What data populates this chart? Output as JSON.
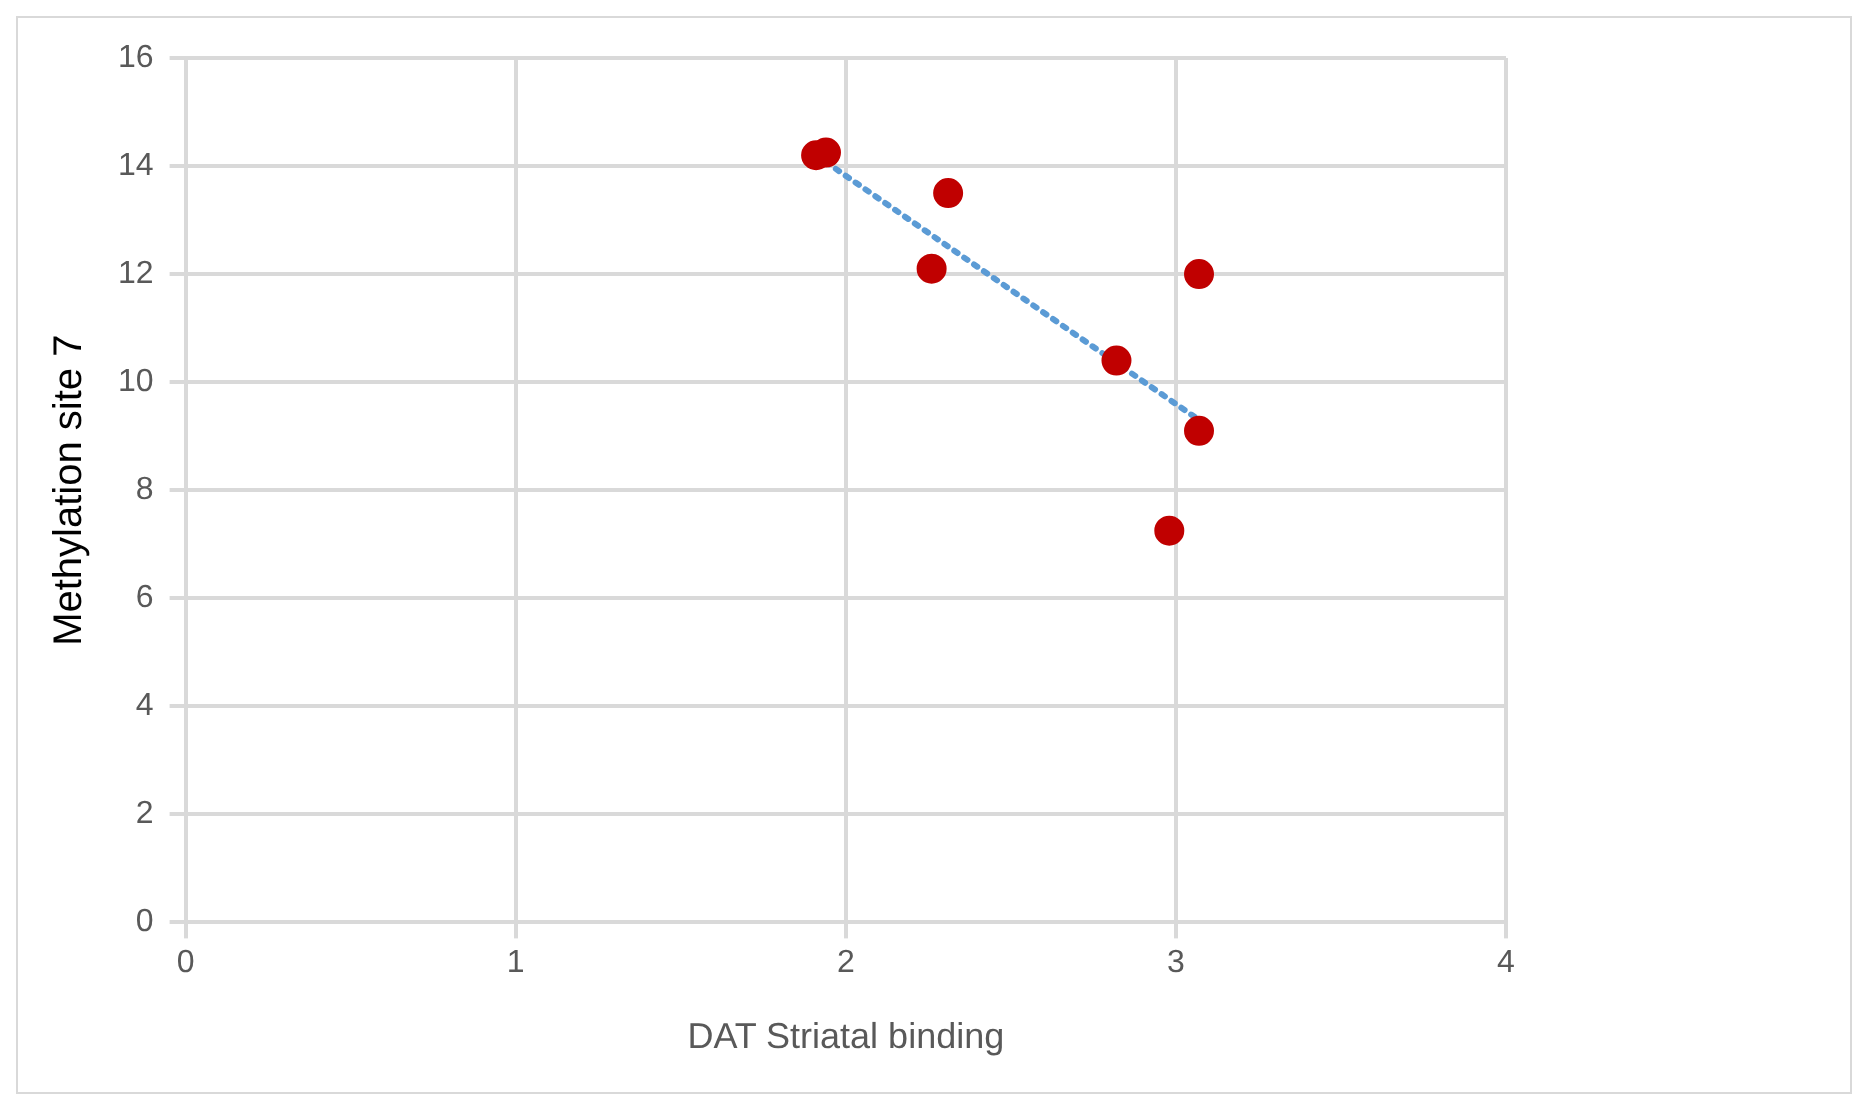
{
  "chart_data": {
    "type": "scatter",
    "xlabel": "DAT Striatal binding",
    "ylabel": "Methylation site 7",
    "xlim": [
      0,
      4
    ],
    "xticks": [
      0,
      1,
      2,
      3,
      4
    ],
    "ylim": [
      0,
      16
    ],
    "yticks": [
      0,
      2,
      4,
      6,
      8,
      10,
      12,
      14,
      16
    ],
    "grid": true,
    "legend": false,
    "series": [
      {
        "color": "#c00000",
        "marker": "circle",
        "x": [
          1.91,
          1.94,
          2.31,
          2.26,
          2.82,
          3.07,
          3.07,
          2.98
        ],
        "values": [
          14.2,
          14.25,
          13.5,
          12.1,
          10.4,
          12.0,
          9.1,
          7.25
        ]
      },
      {
        "type": "line",
        "color": "#5b9bd5",
        "line_style": "dotted",
        "marker": "none",
        "x": [
          1.91,
          3.07
        ],
        "values": [
          14.2,
          9.3
        ]
      }
    ]
  }
}
